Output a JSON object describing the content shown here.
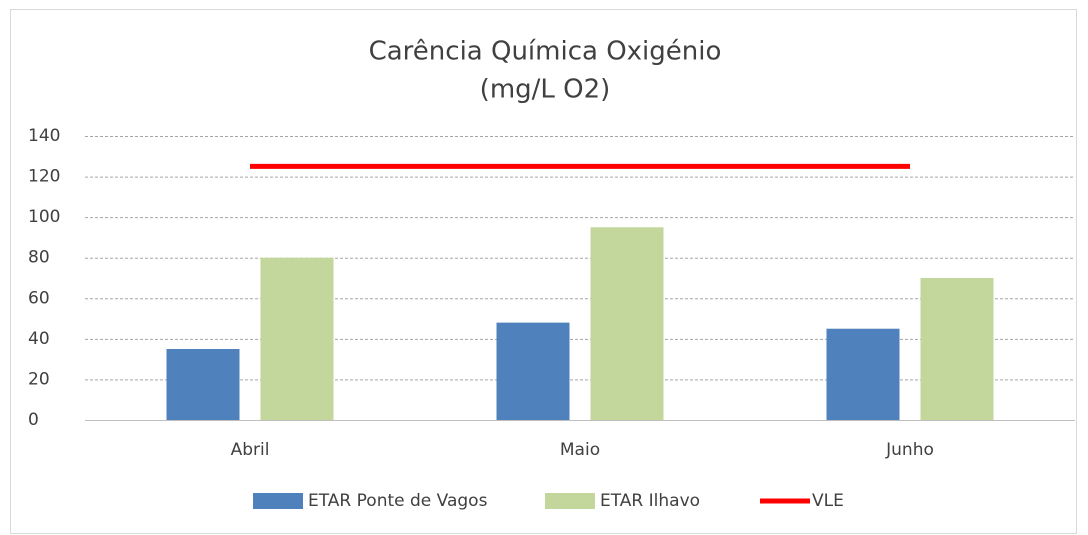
{
  "chart_data": {
    "type": "bar",
    "title": [
      "Carência Química Oxigénio",
      "(mg/L O2)"
    ],
    "categories": [
      "Abril",
      "Maio",
      "Junho"
    ],
    "series": [
      {
        "name": "ETAR Ponte de Vagos",
        "color": "#4f81bd",
        "type": "bar",
        "values": [
          35,
          48,
          45
        ]
      },
      {
        "name": "ETAR Ilhavo",
        "color": "#c3d69b",
        "type": "bar",
        "values": [
          80,
          95,
          70
        ]
      },
      {
        "name": "VLE",
        "color": "#ff0000",
        "type": "line",
        "values": [
          125,
          125,
          125
        ]
      }
    ],
    "ylim": [
      0,
      140
    ],
    "yticks": [
      0,
      20,
      40,
      60,
      80,
      100,
      120,
      140
    ],
    "grid": true,
    "legend": "bottom"
  }
}
